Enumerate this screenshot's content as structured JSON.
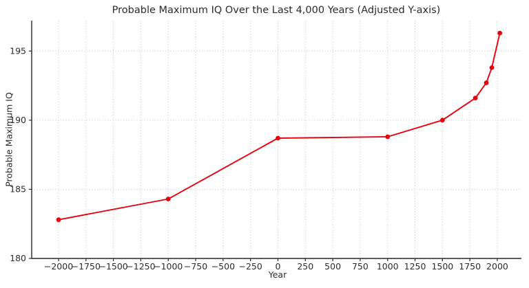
{
  "chart_data": {
    "type": "line",
    "title": "Probable Maximum IQ Over the Last 4,000 Years (Adjusted Y-axis)",
    "xlabel": "Year",
    "ylabel": "Probable Maximum IQ",
    "series": [
      {
        "name": "Probable Maximum IQ",
        "x": [
          -2000,
          -1000,
          0,
          1000,
          1500,
          1800,
          1900,
          1950,
          2023
        ],
        "y": [
          182.8,
          184.3,
          188.7,
          188.8,
          190.0,
          191.6,
          192.7,
          193.8,
          196.3
        ]
      }
    ],
    "xlim": [
      -2245,
      2220
    ],
    "ylim": [
      180,
      197.2
    ],
    "xticks": [
      -2000,
      -1750,
      -1500,
      -1250,
      -1000,
      -750,
      -500,
      -250,
      0,
      250,
      500,
      750,
      1000,
      1250,
      1500,
      1750,
      2000
    ],
    "yticks": [
      180,
      185,
      190,
      195
    ],
    "grid": true,
    "grid_linestyle": "dotted",
    "legend": "none",
    "colors": {
      "line": "#e8000b",
      "marker": "#e8000b",
      "grid": "#c9c9c9",
      "spine": "#262626",
      "text": "#2b2b2b",
      "background": "#ffffff"
    }
  }
}
